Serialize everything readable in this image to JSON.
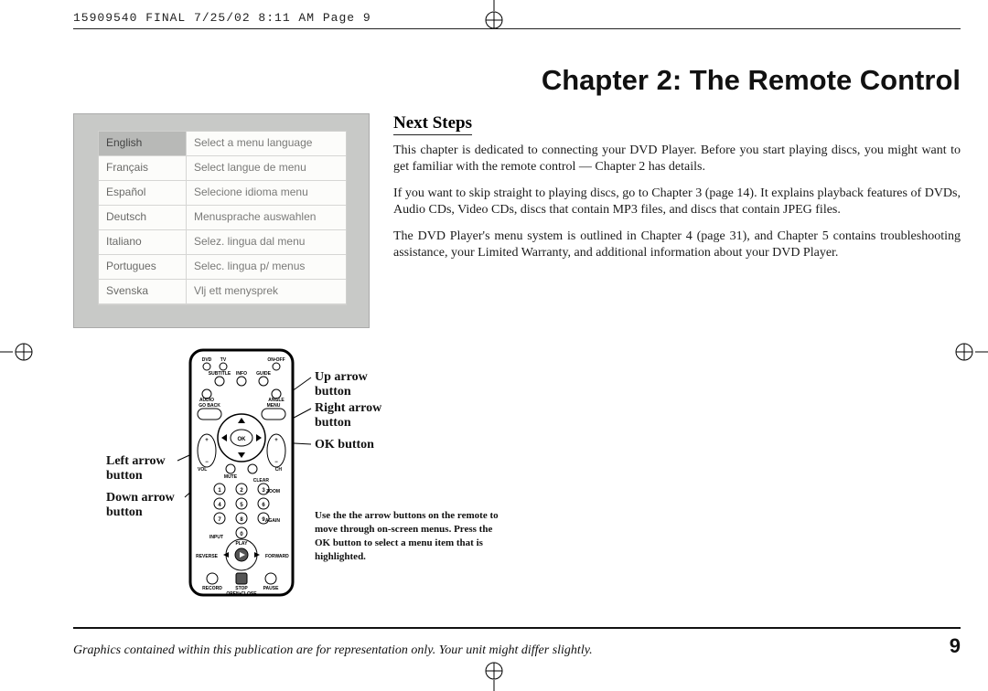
{
  "header": "15909540 FINAL  7/25/02  8:11 AM  Page 9",
  "chapter_title": "Chapter 2: The Remote Control",
  "section_head": "Next Steps",
  "paragraphs": {
    "p1": "This chapter is dedicated to connecting your DVD Player. Before you start playing discs, you might want to get familiar with the remote control — Chapter 2 has details.",
    "p2": "If you want to skip straight to playing discs, go to Chapter 3 (page 14). It explains playback features of DVDs, Audio CDs, Video CDs, discs that contain MP3 files, and discs that contain JPEG files.",
    "p3": "The DVD Player's menu system is outlined in Chapter 4 (page 31), and Chapter 5 contains troubleshooting assistance, your Limited Warranty, and additional information about your DVD Player."
  },
  "menu": {
    "rows": [
      {
        "lang": "English",
        "desc": "Select a menu language",
        "hl": true
      },
      {
        "lang": "Français",
        "desc": "Select langue de menu",
        "hl": false
      },
      {
        "lang": "Español",
        "desc": "Selecione idioma menu",
        "hl": false
      },
      {
        "lang": "Deutsch",
        "desc": "Menusprache auswahlen",
        "hl": false
      },
      {
        "lang": "Italiano",
        "desc": "Selez. lingua dal menu",
        "hl": false
      },
      {
        "lang": "Portugues",
        "desc": "Selec. lingua p/ menus",
        "hl": false
      },
      {
        "lang": "Svenska",
        "desc": "Vlj ett menysprek",
        "hl": false
      }
    ]
  },
  "labels": {
    "left_arrow": "Left arrow\nbutton",
    "down_arrow": "Down arrow\nbutton",
    "up_arrow": "Up arrow\nbutton",
    "right_arrow": "Right arrow\nbutton",
    "ok": "OK button"
  },
  "note": "Use the the arrow buttons on the remote to move through on-screen menus. Press the OK button to select a menu item that is highlighted.",
  "footer_text": "Graphics contained within this publication are for representation only. Your unit might differ slightly.",
  "page_num": "9",
  "colors": {
    "screenshot_bg": "#c8c9c7",
    "menu_bg": "#fcfcfa",
    "hl_bg": "#b8b9b7"
  }
}
